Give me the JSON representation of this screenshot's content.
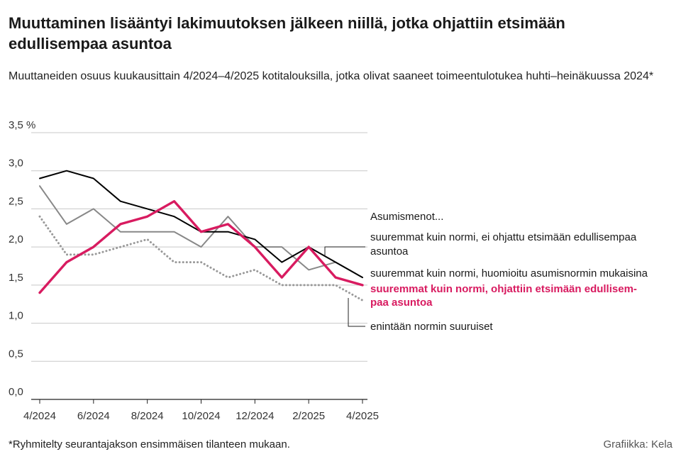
{
  "title": "Muuttaminen lisääntyi lakimuutoksen jälkeen niillä, jotka ohjattiin etsimään edullisempaa asuntoa",
  "subtitle": "Muuttaneiden osuus kuukausittain 4/2024–4/2025 kotitalouksilla, jotka olivat saaneet toimeentulotukea huhti–heinäkuussa 2024*",
  "footnote": "*Ryhmitelty seurantajakson ensimmäisen tilanteen mukaan.",
  "credit": "Grafiikka: Kela",
  "chart_data": {
    "type": "line",
    "title": "Muuttaminen lisääntyi lakimuutoksen jälkeen niillä, jotka ohjattiin etsimään edullisempaa asuntoa",
    "xlabel": "",
    "ylabel": "",
    "x": [
      "4/2024",
      "5/2024",
      "6/2024",
      "7/2024",
      "8/2024",
      "9/2024",
      "10/2024",
      "11/2024",
      "12/2024",
      "1/2025",
      "2/2025",
      "3/2025",
      "4/2025"
    ],
    "x_tick_labels": [
      "4/2024",
      "6/2024",
      "8/2024",
      "10/2024",
      "12/2024",
      "2/2025",
      "4/2025"
    ],
    "ylim": [
      0,
      3.5
    ],
    "y_ticks": [
      0,
      0.5,
      1.0,
      1.5,
      2.0,
      2.5,
      3.0,
      3.5
    ],
    "y_tick_labels": [
      "0,0",
      "0,5",
      "1,0",
      "1,5",
      "2,0",
      "2,5",
      "3,0",
      "3,5 %"
    ],
    "grid": true,
    "legend_heading": "Asumismenot...",
    "series": [
      {
        "name": "suuremmat kuin normi, ei ohjattu etsimään edullisempaa asuntoa",
        "label_lines": [
          "suuremmat kuin normi, ei ohjattu etsimään edullisempaa",
          "asuntoa"
        ],
        "color": "#000000",
        "style": "solid",
        "values": [
          2.9,
          3.0,
          2.9,
          2.6,
          2.5,
          2.4,
          2.2,
          2.2,
          2.1,
          1.8,
          2.0,
          1.8,
          1.6
        ]
      },
      {
        "name": "suuremmat kuin normi, huomioitu asumisnormin mukaisina",
        "label_lines": [
          "suuremmat kuin normi, huomioitu asumisnormin mukaisina"
        ],
        "color": "#888888",
        "style": "solid",
        "values": [
          2.8,
          2.3,
          2.5,
          2.2,
          2.2,
          2.2,
          2.0,
          2.4,
          2.0,
          2.0,
          1.7,
          1.8,
          1.6
        ]
      },
      {
        "name": "suuremmat kuin normi, ohjattiin etsimään edullisempaa asuntoa",
        "label_lines": [
          "suuremmat kuin normi, ohjattiin etsimään edullisem-",
          "paa asuntoa"
        ],
        "color": "#d81b60",
        "style": "bold",
        "values": [
          1.4,
          1.8,
          2.0,
          2.3,
          2.4,
          2.6,
          2.2,
          2.3,
          2.0,
          1.6,
          2.0,
          1.6,
          1.5
        ]
      },
      {
        "name": "enintään normin suuruiset",
        "label_lines": [
          "enintään normin suuruiset"
        ],
        "color": "#999999",
        "style": "dotted",
        "values": [
          2.4,
          1.9,
          1.9,
          2.0,
          2.1,
          1.8,
          1.8,
          1.6,
          1.7,
          1.5,
          1.5,
          1.5,
          1.3
        ]
      }
    ]
  }
}
